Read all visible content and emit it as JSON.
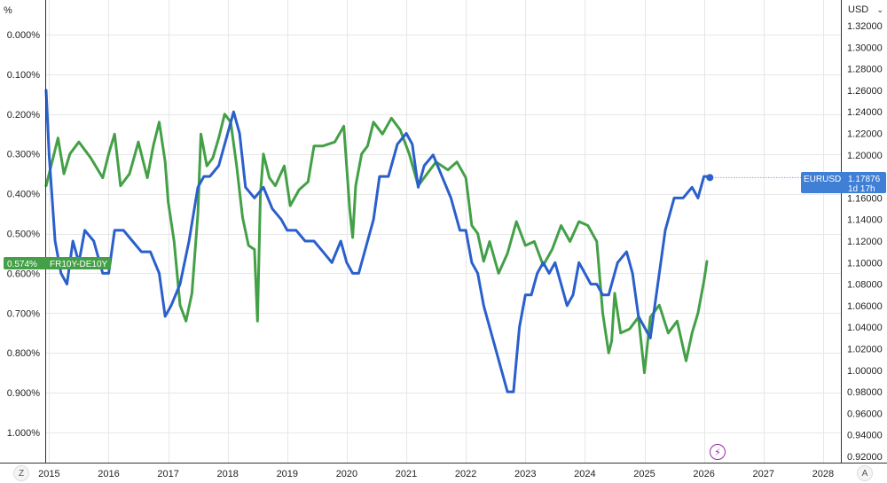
{
  "left_axis": {
    "unit": "%"
  },
  "right_axis": {
    "currency": "USD"
  },
  "corner_buttons": {
    "left": "Z",
    "right": "A"
  },
  "badges": {
    "spread": {
      "value": "0.574%",
      "label": "FR10Y-DE10Y",
      "color": "#43a047"
    },
    "eurusd": {
      "label": "EURUSD",
      "value": "1.17876",
      "countdown": "1d 17h",
      "color": "#3f7fd6"
    }
  },
  "icons": {
    "flash": "lightning-icon",
    "dropdown": "chevron-down-icon"
  },
  "chart_data": {
    "type": "line",
    "x_ticks": [
      "2015",
      "2016",
      "2017",
      "2018",
      "2019",
      "2020",
      "2021",
      "2022",
      "2023",
      "2024",
      "2025",
      "2026",
      "2027",
      "2028"
    ],
    "xlim": [
      "2014.95",
      "2028.3"
    ],
    "y_left": {
      "ticks": [
        "0.000%",
        "0.100%",
        "0.200%",
        "0.300%",
        "0.400%",
        "0.500%",
        "0.600%",
        "0.700%",
        "0.800%",
        "0.900%",
        "1.000%"
      ],
      "ylim": [
        0.0,
        1.0
      ],
      "inverted": true
    },
    "y_right": {
      "ticks": [
        "1.32000",
        "1.30000",
        "1.28000",
        "1.26000",
        "1.24000",
        "1.22000",
        "1.20000",
        "1.18000",
        "1.16000",
        "1.14000",
        "1.12000",
        "1.10000",
        "1.08000",
        "1.06000",
        "1.04000",
        "1.02000",
        "1.00000",
        "0.98000",
        "0.96000",
        "0.94000",
        "0.92000"
      ],
      "ylim": [
        0.92,
        1.32
      ]
    },
    "grid": true,
    "series": [
      {
        "name": "FR10Y-DE10Y",
        "axis": "left",
        "color": "#43a047",
        "x": [
          2014.95,
          2015.05,
          2015.15,
          2015.25,
          2015.35,
          2015.5,
          2015.7,
          2015.9,
          2016.0,
          2016.1,
          2016.2,
          2016.35,
          2016.5,
          2016.65,
          2016.75,
          2016.85,
          2016.95,
          2017.0,
          2017.1,
          2017.2,
          2017.3,
          2017.4,
          2017.5,
          2017.55,
          2017.65,
          2017.75,
          2017.85,
          2017.95,
          2018.05,
          2018.15,
          2018.25,
          2018.35,
          2018.45,
          2018.5,
          2018.55,
          2018.6,
          2018.7,
          2018.8,
          2018.95,
          2019.05,
          2019.2,
          2019.35,
          2019.45,
          2019.6,
          2019.8,
          2019.95,
          2020.05,
          2020.1,
          2020.15,
          2020.25,
          2020.35,
          2020.45,
          2020.6,
          2020.75,
          2020.9,
          2021.05,
          2021.2,
          2021.35,
          2021.5,
          2021.7,
          2021.85,
          2022.0,
          2022.1,
          2022.2,
          2022.3,
          2022.4,
          2022.55,
          2022.7,
          2022.85,
          2023.0,
          2023.15,
          2023.3,
          2023.45,
          2023.6,
          2023.75,
          2023.9,
          2024.05,
          2024.2,
          2024.3,
          2024.4,
          2024.45,
          2024.5,
          2024.6,
          2024.75,
          2024.9,
          2025.0,
          2025.1,
          2025.25,
          2025.4,
          2025.55,
          2025.7,
          2025.8,
          2025.9,
          2026.0,
          2026.05
        ],
        "y": [
          0.38,
          0.32,
          0.26,
          0.35,
          0.3,
          0.27,
          0.31,
          0.36,
          0.3,
          0.25,
          0.38,
          0.35,
          0.27,
          0.36,
          0.28,
          0.22,
          0.32,
          0.42,
          0.52,
          0.68,
          0.72,
          0.65,
          0.45,
          0.25,
          0.33,
          0.31,
          0.26,
          0.2,
          0.22,
          0.33,
          0.46,
          0.53,
          0.54,
          0.72,
          0.4,
          0.3,
          0.36,
          0.38,
          0.33,
          0.43,
          0.39,
          0.37,
          0.28,
          0.28,
          0.27,
          0.23,
          0.44,
          0.51,
          0.38,
          0.3,
          0.28,
          0.22,
          0.25,
          0.21,
          0.24,
          0.3,
          0.38,
          0.35,
          0.32,
          0.34,
          0.32,
          0.36,
          0.48,
          0.5,
          0.57,
          0.52,
          0.6,
          0.55,
          0.47,
          0.53,
          0.52,
          0.58,
          0.54,
          0.48,
          0.52,
          0.47,
          0.48,
          0.52,
          0.7,
          0.8,
          0.77,
          0.65,
          0.75,
          0.74,
          0.71,
          0.85,
          0.71,
          0.68,
          0.75,
          0.72,
          0.82,
          0.75,
          0.7,
          0.62,
          0.57
        ]
      },
      {
        "name": "EURUSD",
        "axis": "right",
        "color": "#2a5fcc",
        "x": [
          2014.95,
          2015.0,
          2015.1,
          2015.2,
          2015.3,
          2015.4,
          2015.5,
          2015.6,
          2015.75,
          2015.9,
          2016.0,
          2016.1,
          2016.25,
          2016.4,
          2016.55,
          2016.7,
          2016.85,
          2016.95,
          2017.05,
          2017.2,
          2017.35,
          2017.5,
          2017.6,
          2017.7,
          2017.85,
          2018.0,
          2018.1,
          2018.2,
          2018.3,
          2018.45,
          2018.6,
          2018.75,
          2018.9,
          2019.0,
          2019.15,
          2019.3,
          2019.45,
          2019.6,
          2019.75,
          2019.9,
          2020.0,
          2020.1,
          2020.2,
          2020.35,
          2020.45,
          2020.55,
          2020.7,
          2020.85,
          2021.0,
          2021.1,
          2021.2,
          2021.3,
          2021.45,
          2021.6,
          2021.75,
          2021.9,
          2022.0,
          2022.1,
          2022.2,
          2022.3,
          2022.4,
          2022.5,
          2022.6,
          2022.7,
          2022.8,
          2022.9,
          2023.0,
          2023.1,
          2023.2,
          2023.3,
          2023.4,
          2023.5,
          2023.6,
          2023.7,
          2023.8,
          2023.9,
          2024.0,
          2024.1,
          2024.2,
          2024.3,
          2024.4,
          2024.55,
          2024.7,
          2024.8,
          2024.9,
          2025.0,
          2025.1,
          2025.2,
          2025.35,
          2025.5,
          2025.65,
          2025.8,
          2025.9,
          2026.0,
          2026.05,
          2026.1
        ],
        "y": [
          1.26,
          1.2,
          1.12,
          1.09,
          1.08,
          1.12,
          1.1,
          1.13,
          1.12,
          1.09,
          1.09,
          1.13,
          1.13,
          1.12,
          1.11,
          1.11,
          1.09,
          1.05,
          1.06,
          1.08,
          1.12,
          1.17,
          1.18,
          1.18,
          1.19,
          1.22,
          1.24,
          1.22,
          1.17,
          1.16,
          1.17,
          1.15,
          1.14,
          1.13,
          1.13,
          1.12,
          1.12,
          1.11,
          1.1,
          1.12,
          1.1,
          1.09,
          1.09,
          1.12,
          1.14,
          1.18,
          1.18,
          1.21,
          1.22,
          1.21,
          1.17,
          1.19,
          1.2,
          1.18,
          1.16,
          1.13,
          1.13,
          1.1,
          1.09,
          1.06,
          1.04,
          1.02,
          1.0,
          0.98,
          0.98,
          1.04,
          1.07,
          1.07,
          1.09,
          1.1,
          1.09,
          1.1,
          1.08,
          1.06,
          1.07,
          1.1,
          1.09,
          1.08,
          1.08,
          1.07,
          1.07,
          1.1,
          1.11,
          1.09,
          1.05,
          1.04,
          1.03,
          1.07,
          1.13,
          1.16,
          1.16,
          1.17,
          1.16,
          1.18,
          1.18,
          1.179
        ]
      }
    ]
  }
}
